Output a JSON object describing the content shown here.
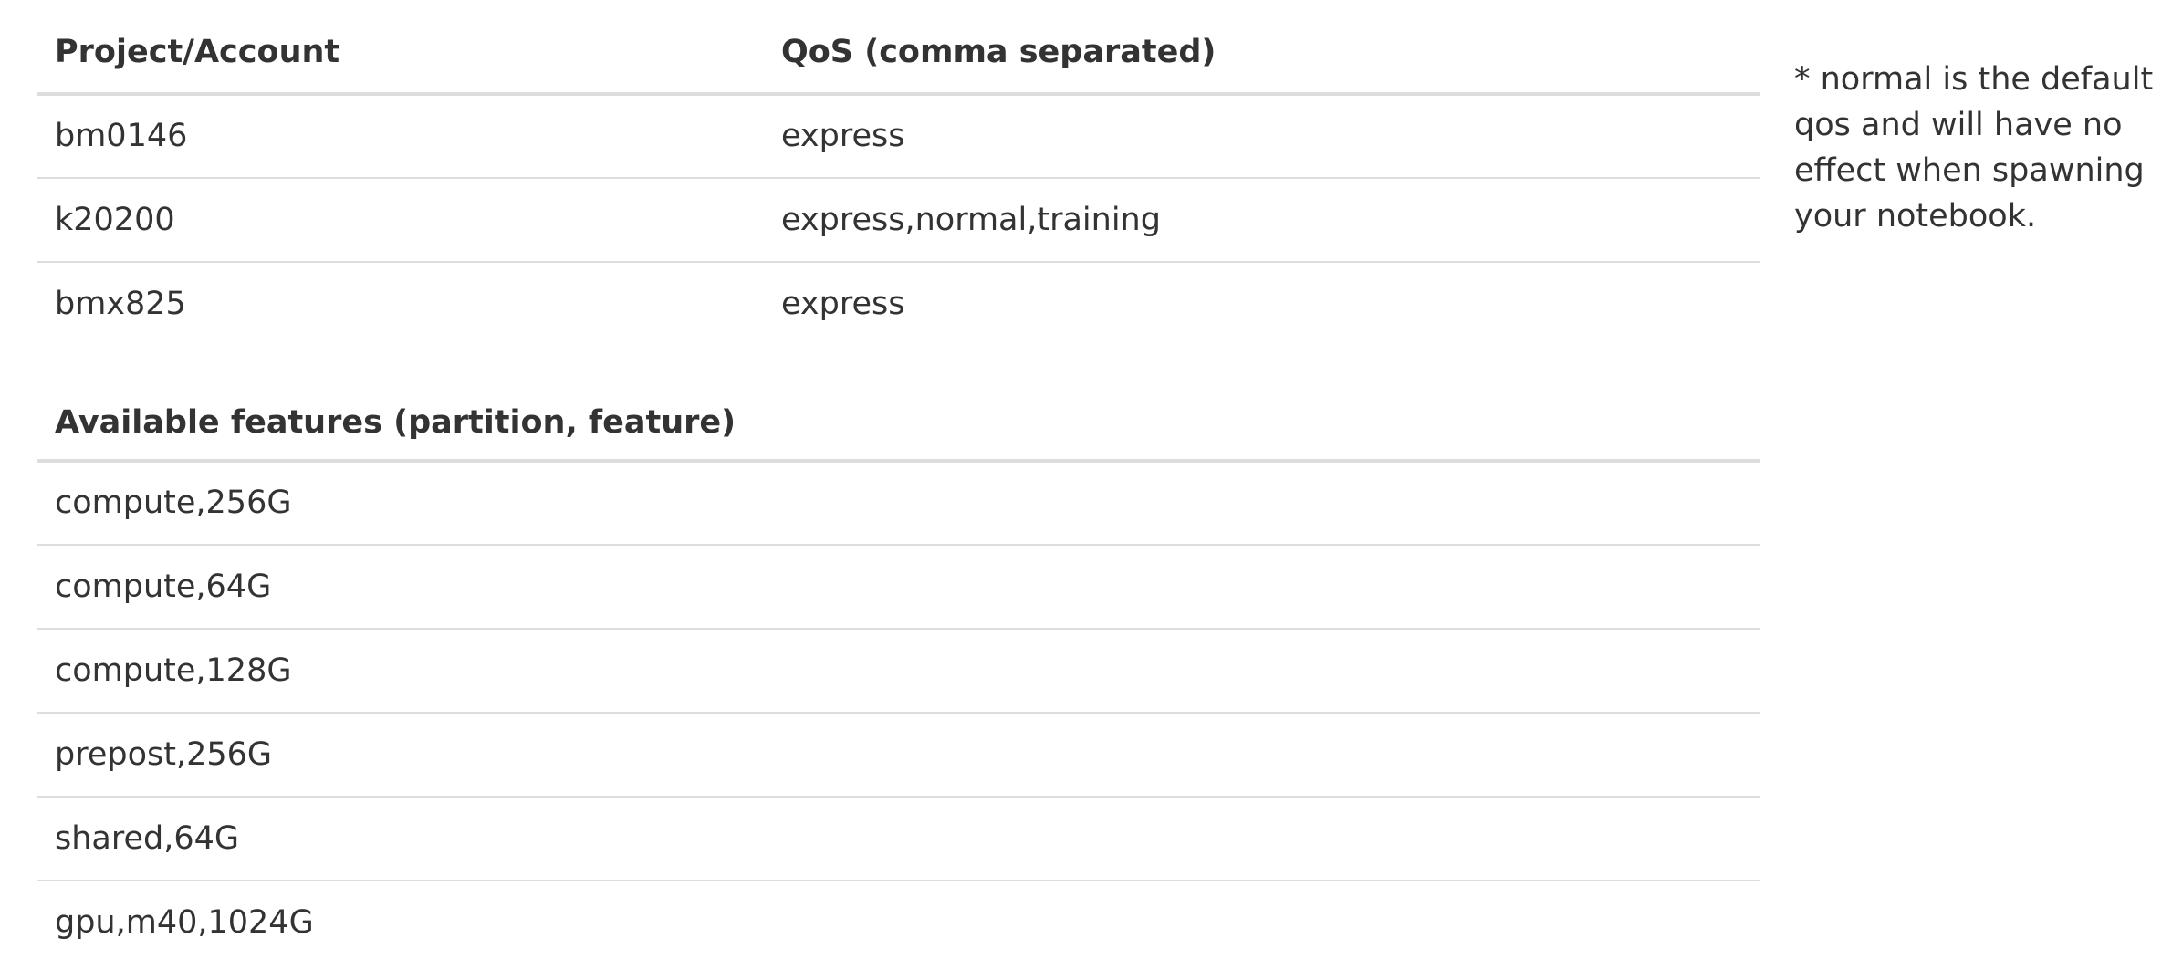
{
  "qos_table": {
    "headers": {
      "project": "Project/Account",
      "qos": "QoS (comma separated)"
    },
    "rows": [
      {
        "project": "bm0146",
        "qos": "express"
      },
      {
        "project": "k20200",
        "qos": "express,normal,training"
      },
      {
        "project": "bmx825",
        "qos": "express"
      }
    ]
  },
  "features_table": {
    "header": "Available features (partition, feature)",
    "rows": [
      "compute,256G",
      "compute,64G",
      "compute,128G",
      "prepost,256G",
      "shared,64G",
      "gpu,m40,1024G"
    ]
  },
  "note": "* normal is the default qos and will have no effect when spawning your notebook."
}
